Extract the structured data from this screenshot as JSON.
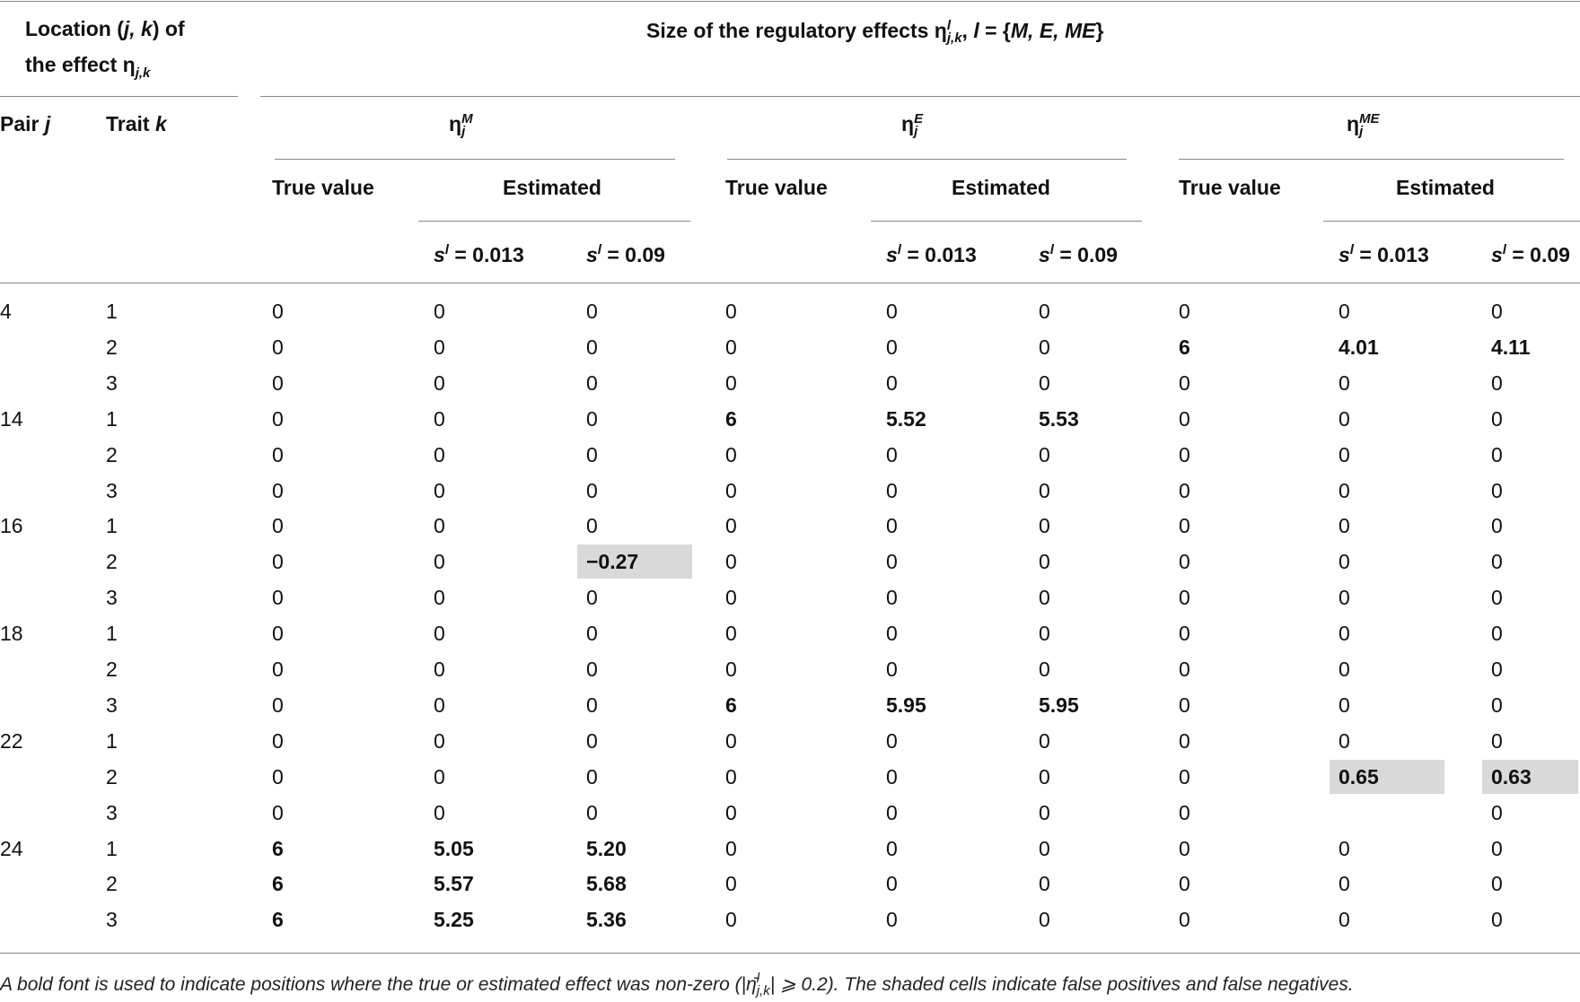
{
  "header": {
    "location": [
      {
        "text": "Location ("
      },
      {
        "text": "j, k",
        "format": "italic"
      },
      {
        "text": ") of"
      }
    ],
    "location_2": [
      {
        "text": "the effect η"
      },
      {
        "text": "j,k",
        "format": "subscript"
      }
    ],
    "size": [
      {
        "text": "Size of the regulatory effects η"
      },
      {
        "text": "l",
        "format": "superscript"
      },
      {
        "text": "j,k",
        "format": "subscript"
      },
      {
        "text": ", "
      },
      {
        "text": "l",
        "format": "italic"
      },
      {
        "text": " = {"
      },
      {
        "text": "M, E, ME",
        "format": "italic"
      },
      {
        "text": "}"
      }
    ],
    "pair": [
      {
        "text": "Pair "
      },
      {
        "text": "j",
        "format": "italic"
      }
    ],
    "trait": [
      {
        "text": "Trait "
      },
      {
        "text": "k",
        "format": "italic"
      }
    ],
    "groups": [
      [
        {
          "text": "η"
        },
        {
          "text": "M",
          "format": "superscript"
        },
        {
          "text": "j",
          "format": "subscript"
        }
      ],
      [
        {
          "text": "η"
        },
        {
          "text": "E",
          "format": "superscript"
        },
        {
          "text": "j",
          "format": "subscript"
        }
      ],
      [
        {
          "text": "η"
        },
        {
          "text": "ME",
          "format": "superscript"
        },
        {
          "text": "j",
          "format": "subscript"
        }
      ]
    ],
    "true_value": "True value",
    "estimated": "Estimated",
    "s_values": [
      [
        {
          "text": "s",
          "format": "italic"
        },
        {
          "text": "l",
          "format": "superscript"
        },
        {
          "text": " = 0.013"
        }
      ],
      [
        {
          "text": "s",
          "format": "italic"
        },
        {
          "text": "l",
          "format": "superscript"
        },
        {
          "text": " = 0.09"
        }
      ]
    ]
  },
  "table": {
    "rows": [
      {
        "pair": "4",
        "trait": "1",
        "cells": [
          "0",
          "0",
          "0",
          "0",
          "0",
          "0",
          "0",
          "0",
          "0"
        ]
      },
      {
        "trait": "2",
        "cells": [
          "0",
          "0",
          "0",
          "0",
          "0",
          "0",
          {
            "text": "6",
            "bold": true
          },
          {
            "text": "4.01",
            "bold": true
          },
          {
            "text": "4.11",
            "bold": true
          }
        ]
      },
      {
        "trait": "3",
        "cells": [
          "0",
          "0",
          "0",
          "0",
          "0",
          "0",
          "0",
          "0",
          "0"
        ]
      },
      {
        "pair": "14",
        "trait": "1",
        "cells": [
          "0",
          "0",
          "0",
          {
            "text": "6",
            "bold": true
          },
          {
            "text": "5.52",
            "bold": true
          },
          {
            "text": "5.53",
            "bold": true
          },
          "0",
          "0",
          "0"
        ]
      },
      {
        "trait": "2",
        "cells": [
          "0",
          "0",
          "0",
          "0",
          "0",
          "0",
          "0",
          "0",
          "0"
        ]
      },
      {
        "trait": "3",
        "cells": [
          "0",
          "0",
          "0",
          "0",
          "0",
          "0",
          "0",
          "0",
          "0"
        ]
      },
      {
        "pair": "16",
        "trait": "1",
        "cells": [
          "0",
          "0",
          "0",
          "0",
          "0",
          "0",
          "0",
          "0",
          "0"
        ]
      },
      {
        "trait": "2",
        "cells": [
          "0",
          "0",
          {
            "text": "−0.27",
            "bold": true,
            "shaded": true
          },
          "0",
          "0",
          "0",
          "0",
          "0",
          "0"
        ]
      },
      {
        "trait": "3",
        "cells": [
          "0",
          "0",
          "0",
          "0",
          "0",
          "0",
          "0",
          "0",
          "0"
        ]
      },
      {
        "pair": "18",
        "trait": "1",
        "cells": [
          "0",
          "0",
          "0",
          "0",
          "0",
          "0",
          "0",
          "0",
          "0"
        ]
      },
      {
        "trait": "2",
        "cells": [
          "0",
          "0",
          "0",
          "0",
          "0",
          "0",
          "0",
          "0",
          "0"
        ]
      },
      {
        "trait": "3",
        "cells": [
          "0",
          "0",
          "0",
          {
            "text": "6",
            "bold": true
          },
          {
            "text": "5.95",
            "bold": true
          },
          {
            "text": "5.95",
            "bold": true
          },
          "0",
          "0",
          "0"
        ]
      },
      {
        "pair": "22",
        "trait": "1",
        "cells": [
          "0",
          "0",
          "0",
          "0",
          "0",
          "0",
          "0",
          "0",
          "0"
        ]
      },
      {
        "trait": "2",
        "cells": [
          "0",
          "0",
          "0",
          "0",
          "0",
          "0",
          "0",
          {
            "text": "0.65",
            "bold": true,
            "shaded": true
          },
          {
            "text": "0.63",
            "bold": true,
            "shaded": true
          }
        ]
      },
      {
        "trait": "3",
        "cells": [
          "0",
          "0",
          "0",
          "0",
          "0",
          "0",
          "0",
          null,
          "0"
        ]
      },
      {
        "pair": "24",
        "trait": "1",
        "cells": [
          {
            "text": "6",
            "bold": true
          },
          {
            "text": "5.05",
            "bold": true
          },
          {
            "text": "5.20",
            "bold": true
          },
          "0",
          "0",
          "0",
          "0",
          "0",
          "0"
        ]
      },
      {
        "trait": "2",
        "cells": [
          {
            "text": "6",
            "bold": true
          },
          {
            "text": "5.57",
            "bold": true
          },
          {
            "text": "5.68",
            "bold": true
          },
          "0",
          "0",
          "0",
          "0",
          "0",
          "0"
        ]
      },
      {
        "trait": "3",
        "cells": [
          {
            "text": "6",
            "bold": true
          },
          {
            "text": "5.25",
            "bold": true
          },
          {
            "text": "5.36",
            "bold": true
          },
          "0",
          "0",
          "0",
          "0",
          "0",
          "0"
        ]
      }
    ]
  },
  "footnote": [
    {
      "text": "A bold font is used to indicate positions where the true or estimated effect was non-zero (|η̄"
    },
    {
      "text": "l",
      "format": "superscript"
    },
    {
      "text": "j,k",
      "format": "subscript"
    },
    {
      "text": "| ⩾ 0.2). The shaded cells indicate false positives and false negatives."
    }
  ]
}
